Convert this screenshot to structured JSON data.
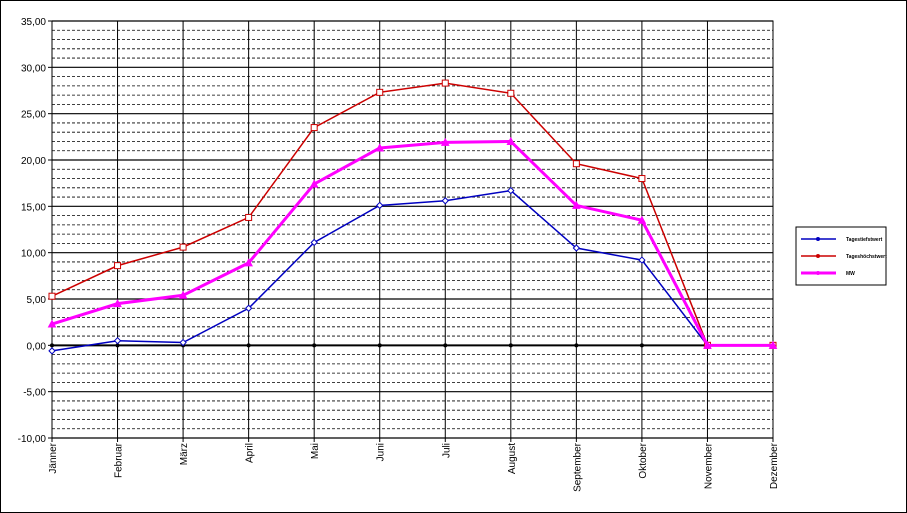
{
  "chart_data": {
    "type": "line",
    "title": "",
    "xlabel": "",
    "ylabel": "",
    "ylim": [
      -10,
      35
    ],
    "ytick_step": 5,
    "ytick_labels": [
      "-10,00",
      "-5,00",
      "0,00",
      "5,00",
      "10,00",
      "15,00",
      "20,00",
      "25,00",
      "30,00",
      "35,00"
    ],
    "categories": [
      "Jänner",
      "Februar",
      "März",
      "April",
      "Mai",
      "Juni",
      "Juli",
      "August",
      "September",
      "Oktober",
      "November",
      "Dezember"
    ],
    "grid": true,
    "legend_position": "right",
    "series": [
      {
        "name": "Tagestiefstwert",
        "color": "#0000C0",
        "values": [
          -0.6,
          0.5,
          0.3,
          4.0,
          11.1,
          15.1,
          15.6,
          16.7,
          10.5,
          9.2,
          0.0,
          0.0
        ]
      },
      {
        "name": "Tageshöchstwert",
        "color": "#CC0000",
        "values": [
          5.3,
          8.6,
          10.6,
          13.8,
          23.5,
          27.3,
          28.3,
          27.2,
          19.6,
          18.0,
          0.0,
          0.0
        ]
      },
      {
        "name": "MW",
        "color": "#FF00FF",
        "values": [
          2.3,
          4.5,
          5.4,
          8.9,
          17.4,
          21.3,
          21.9,
          22.0,
          15.1,
          13.5,
          0.0,
          0.0
        ]
      }
    ]
  }
}
